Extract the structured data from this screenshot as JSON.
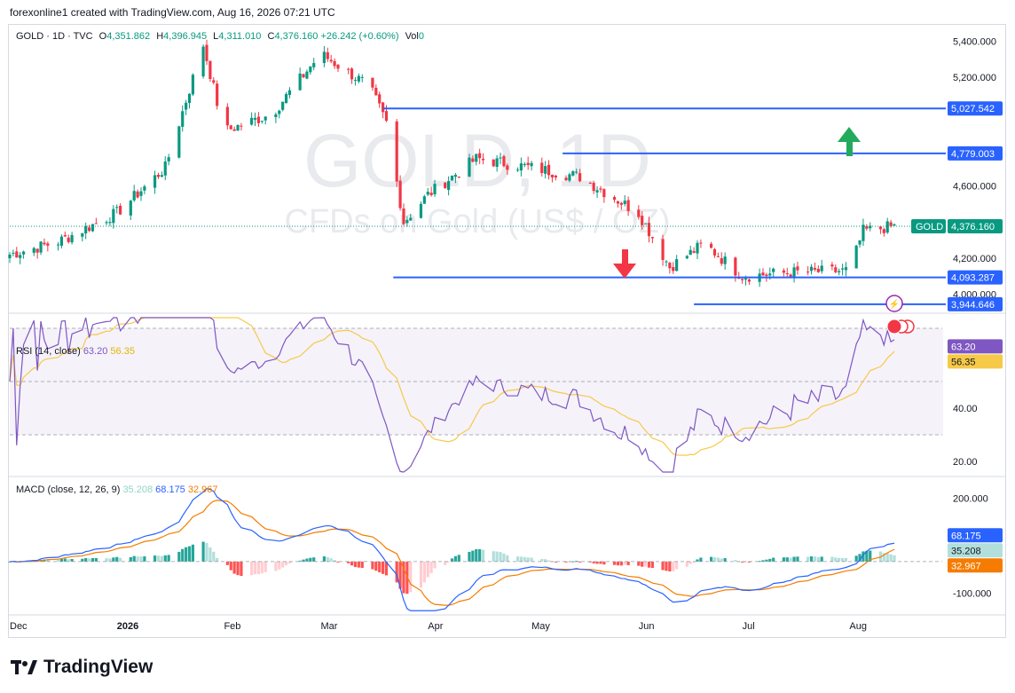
{
  "header": {
    "text": "forexonline1 created with TradingView.com, Aug 16, 2026 07:21 UTC"
  },
  "legend": {
    "symbol": "GOLD · 1D · TVC",
    "open_label": "O",
    "open": "4,351.862",
    "high_label": "H",
    "high": "4,396.945",
    "low_label": "L",
    "low": "4,311.010",
    "close_label": "C",
    "close": "4,376.160",
    "change": "+26.242 (+0.60%)",
    "vol_label": "Vol",
    "vol": "0"
  },
  "watermark": {
    "line1": "GOLD, 1D",
    "line2": "CFDs on Gold (US$ / OZ)"
  },
  "price_axis": {
    "ticks": [
      "5,400.000",
      "5,200.000",
      "4,600.000",
      "4,200.000",
      "4,000.000"
    ]
  },
  "levels": [
    {
      "value": "5,027.542"
    },
    {
      "value": "4,779.003"
    },
    {
      "value": "4,093.287"
    },
    {
      "value": "3,944.646"
    }
  ],
  "last_price": {
    "symbol": "GOLD",
    "value": "4,376.160"
  },
  "rsi": {
    "legend_name": "RSI (14, close)",
    "rsi_value": "63.20",
    "ma_value": "56.35",
    "axis_ticks": [
      "40.00",
      "20.00"
    ],
    "badge_rsi": "63.20",
    "badge_ma": "56.35"
  },
  "macd": {
    "legend_name": "MACD (close, 12, 26, 9)",
    "hist_value": "35.208",
    "macd_value": "68.175",
    "signal_value": "32.967",
    "axis_ticks": [
      "200.000",
      "-100.000"
    ],
    "badge_macd": "68.175",
    "badge_hist": "35.208",
    "badge_signal": "32.967"
  },
  "time_axis": [
    "Dec",
    "2026",
    "Feb",
    "Mar",
    "Apr",
    "May",
    "Jun",
    "Jul",
    "Aug"
  ],
  "logo_text": "TradingView",
  "colors": {
    "up": "#089981",
    "down": "#f23645",
    "level": "#2962ff",
    "rsi": "#7e57c2",
    "rsi_ma": "#f7c948",
    "macd": "#2962ff",
    "signal": "#f57c00",
    "arrow_up": "#22ab5c",
    "arrow_down": "#f23645"
  },
  "chart_data": {
    "type": "candlestick",
    "anchors": [
      {
        "date": "2025-12-01",
        "close": 4220
      },
      {
        "date": "2025-12-15",
        "close": 4290
      },
      {
        "date": "2026-01-01",
        "close": 4450
      },
      {
        "date": "2026-01-15",
        "close": 4700
      },
      {
        "date": "2026-01-26",
        "close": 5380
      },
      {
        "date": "2026-02-01",
        "close": 4900
      },
      {
        "date": "2026-02-15",
        "close": 5000
      },
      {
        "date": "2026-03-01",
        "close": 5330
      },
      {
        "date": "2026-03-15",
        "close": 5150
      },
      {
        "date": "2026-03-20",
        "close": 4950
      },
      {
        "date": "2026-03-25",
        "close": 4400
      },
      {
        "date": "2026-04-01",
        "close": 4550
      },
      {
        "date": "2026-04-15",
        "close": 4750
      },
      {
        "date": "2026-05-01",
        "close": 4700
      },
      {
        "date": "2026-05-15",
        "close": 4650
      },
      {
        "date": "2026-06-01",
        "close": 4450
      },
      {
        "date": "2026-06-10",
        "close": 4150
      },
      {
        "date": "2026-06-20",
        "close": 4280
      },
      {
        "date": "2026-07-01",
        "close": 4100
      },
      {
        "date": "2026-07-15",
        "close": 4120
      },
      {
        "date": "2026-08-01",
        "close": 4130
      },
      {
        "date": "2026-08-05",
        "close": 4350
      },
      {
        "date": "2026-08-14",
        "close": 4376
      }
    ],
    "ylim": [
      3900,
      5480
    ],
    "rsi_ylim": [
      15,
      75
    ],
    "rsi_bands": [
      30,
      50,
      70
    ],
    "macd_ylim": [
      -160,
      260
    ]
  }
}
